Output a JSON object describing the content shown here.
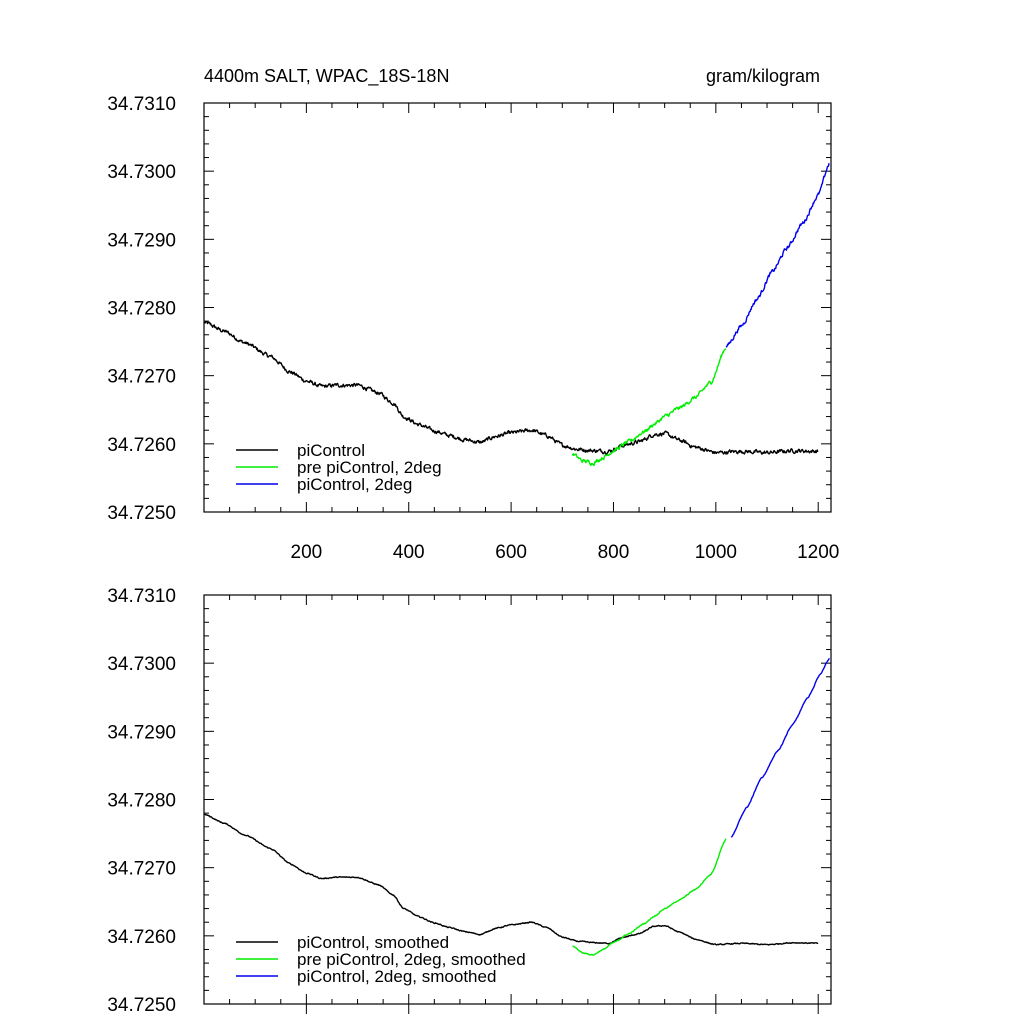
{
  "chart_data": [
    {
      "type": "line",
      "title": "4400m SALT, WPAC_18S-18N",
      "units": "gram/kilogram",
      "xlim": [
        0,
        1225
      ],
      "ylim": [
        34.725,
        34.731
      ],
      "xticks": [
        200,
        400,
        600,
        800,
        1000,
        1200
      ],
      "xtick_labels": [
        "200",
        "400",
        "600",
        "800",
        "1000",
        "1200"
      ],
      "yticks": [
        34.725,
        34.726,
        34.727,
        34.728,
        34.729,
        34.73,
        34.731
      ],
      "ytick_labels": [
        "34.7250",
        "34.7260",
        "34.7270",
        "34.7280",
        "34.7290",
        "34.7300",
        "34.7310"
      ],
      "noise": 4.5e-05,
      "series": [
        {
          "name": "piControl",
          "color": "#000000",
          "points": [
            [
              1,
              34.72778
            ],
            [
              40,
              34.72765
            ],
            [
              80,
              34.72748
            ],
            [
              130,
              34.72728
            ],
            [
              170,
              34.72705
            ],
            [
              200,
              34.72692
            ],
            [
              230,
              34.72684
            ],
            [
              260,
              34.72686
            ],
            [
              300,
              34.72686
            ],
            [
              340,
              34.72675
            ],
            [
              370,
              34.7266
            ],
            [
              390,
              34.7264
            ],
            [
              420,
              34.72628
            ],
            [
              450,
              34.72619
            ],
            [
              480,
              34.72612
            ],
            [
              510,
              34.72606
            ],
            [
              540,
              34.72602
            ],
            [
              570,
              34.72611
            ],
            [
              600,
              34.72616
            ],
            [
              640,
              34.7262
            ],
            [
              670,
              34.72612
            ],
            [
              700,
              34.72598
            ],
            [
              730,
              34.72592
            ],
            [
              760,
              34.7259
            ],
            [
              790,
              34.72589
            ],
            [
              820,
              34.72598
            ],
            [
              850,
              34.72603
            ],
            [
              880,
              34.72614
            ],
            [
              900,
              34.72615
            ],
            [
              930,
              34.72605
            ],
            [
              960,
              34.72595
            ],
            [
              1000,
              34.72587
            ],
            [
              1050,
              34.72589
            ],
            [
              1100,
              34.72587
            ],
            [
              1150,
              34.7259
            ],
            [
              1200,
              34.72589
            ]
          ]
        },
        {
          "name": "pre piControl, 2deg",
          "color": "#00ee00",
          "points": [
            [
              720,
              34.72585
            ],
            [
              740,
              34.72575
            ],
            [
              760,
              34.72572
            ],
            [
              780,
              34.7258
            ],
            [
              800,
              34.7259
            ],
            [
              830,
              34.72603
            ],
            [
              860,
              34.72618
            ],
            [
              880,
              34.72629
            ],
            [
              900,
              34.7264
            ],
            [
              930,
              34.72653
            ],
            [
              960,
              34.72668
            ],
            [
              990,
              34.7269
            ],
            [
              1020,
              34.72742
            ]
          ]
        },
        {
          "name": "piControl, 2deg",
          "color": "#0000ee",
          "points": [
            [
              1020,
              34.72742
            ],
            [
              1050,
              34.72773
            ],
            [
              1080,
              34.72812
            ],
            [
              1110,
              34.72852
            ],
            [
              1140,
              34.72888
            ],
            [
              1170,
              34.72924
            ],
            [
              1200,
              34.72965
            ],
            [
              1222,
              34.73012
            ]
          ]
        }
      ],
      "legend": [
        "piControl",
        "pre piControl, 2deg",
        "piControl, 2deg"
      ]
    },
    {
      "type": "line",
      "title": "",
      "xlim": [
        0,
        1225
      ],
      "ylim": [
        34.725,
        34.731
      ],
      "yticks": [
        34.725,
        34.726,
        34.727,
        34.728,
        34.729,
        34.73,
        34.731
      ],
      "ytick_labels": [
        "34.7250",
        "34.7260",
        "34.7270",
        "34.7280",
        "34.7290",
        "34.7300",
        "34.7310"
      ],
      "noise": 1.2e-05,
      "series": [
        {
          "name": "piControl, smoothed",
          "color": "#000000",
          "points": [
            [
              1,
              34.72778
            ],
            [
              40,
              34.72765
            ],
            [
              80,
              34.72748
            ],
            [
              130,
              34.72728
            ],
            [
              170,
              34.72705
            ],
            [
              200,
              34.72692
            ],
            [
              230,
              34.72684
            ],
            [
              260,
              34.72686
            ],
            [
              300,
              34.72686
            ],
            [
              340,
              34.72675
            ],
            [
              370,
              34.7266
            ],
            [
              390,
              34.7264
            ],
            [
              420,
              34.72628
            ],
            [
              450,
              34.72619
            ],
            [
              480,
              34.72612
            ],
            [
              510,
              34.72606
            ],
            [
              540,
              34.72602
            ],
            [
              570,
              34.72611
            ],
            [
              600,
              34.72616
            ],
            [
              640,
              34.7262
            ],
            [
              670,
              34.72612
            ],
            [
              700,
              34.72598
            ],
            [
              730,
              34.72592
            ],
            [
              760,
              34.7259
            ],
            [
              790,
              34.72589
            ],
            [
              820,
              34.72598
            ],
            [
              850,
              34.72603
            ],
            [
              880,
              34.72614
            ],
            [
              900,
              34.72615
            ],
            [
              930,
              34.72605
            ],
            [
              960,
              34.72595
            ],
            [
              1000,
              34.72587
            ],
            [
              1050,
              34.72589
            ],
            [
              1100,
              34.72587
            ],
            [
              1150,
              34.7259
            ],
            [
              1200,
              34.72589
            ]
          ]
        },
        {
          "name": "pre piControl, 2deg, smoothed",
          "color": "#00ee00",
          "points": [
            [
              720,
              34.72585
            ],
            [
              740,
              34.72575
            ],
            [
              760,
              34.72572
            ],
            [
              780,
              34.7258
            ],
            [
              800,
              34.7259
            ],
            [
              830,
              34.72603
            ],
            [
              860,
              34.72618
            ],
            [
              880,
              34.72629
            ],
            [
              900,
              34.7264
            ],
            [
              930,
              34.72653
            ],
            [
              960,
              34.72668
            ],
            [
              990,
              34.7269
            ],
            [
              1020,
              34.72742
            ]
          ]
        },
        {
          "name": "piControl, 2deg, smoothed",
          "color": "#0000ee",
          "points": [
            [
              1030,
              34.72745
            ],
            [
              1060,
              34.72788
            ],
            [
              1090,
              34.72832
            ],
            [
              1120,
              34.7287
            ],
            [
              1150,
              34.7291
            ],
            [
              1180,
              34.7295
            ],
            [
              1205,
              34.72985
            ],
            [
              1222,
              34.73007
            ]
          ]
        }
      ],
      "legend": [
        "piControl, smoothed",
        "pre piControl, 2deg, smoothed",
        "piControl, 2deg, smoothed"
      ]
    }
  ]
}
